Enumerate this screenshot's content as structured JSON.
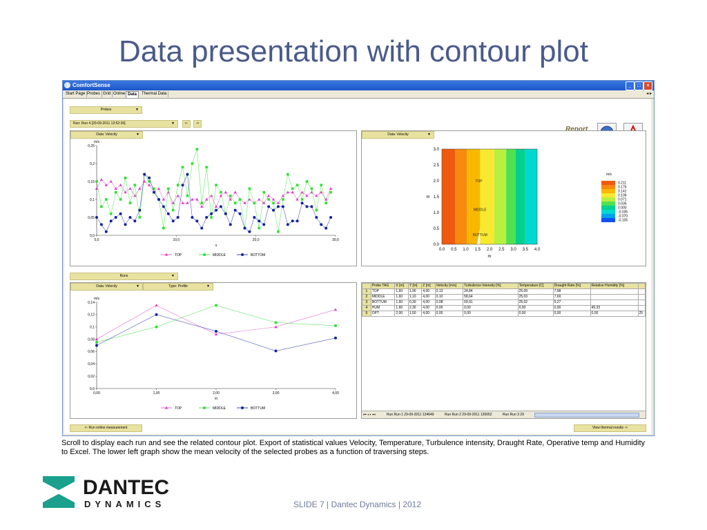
{
  "slide": {
    "title": "Data presentation with contour plot",
    "caption": "Scroll to display each run and see the related contour plot. Export of statistical values Velocity, Temperature, Turbulence intensity, Draught Rate, Operative temp and Humidity to Excel. The lower left graph show the mean velocity of the selected probes as a function of traversing steps.",
    "footer": "SLIDE 7  |  Dantec Dynamics  |  2012",
    "logo_line1": "DANTEC",
    "logo_line2": "DYNAMICS"
  },
  "window": {
    "title": "ComfortSense",
    "tabs": [
      "Start Page",
      "Probes",
      "Grid",
      "Online",
      "Data",
      "Thermal Data"
    ],
    "active_tab": "Data",
    "tab_nav": "◂ ▸"
  },
  "controls": {
    "probes_dd": "Probes",
    "run_dd": "Run: Run 4 [29-09-2011 13:52:26]",
    "prev_btn": "<-",
    "next_btn": "->",
    "report_label": "Report",
    "chart1_dd": "Data: Velocity",
    "contour_dd": "Data: Velocity",
    "runs_dd": "Runs",
    "chart2_dd": "Data: Velocity",
    "type_dd": "Type: Profile",
    "run_online_btn": "<- Run online measurement",
    "view_thermal_btn": "View thermal results ->"
  },
  "chart_data": [
    {
      "type": "line",
      "title": "",
      "xlabel": "s",
      "ylabel": "m/s",
      "xlim": [
        0,
        30
      ],
      "ylim": [
        0,
        0.25
      ],
      "xticks": [
        "0,0",
        "10,0",
        "20,0",
        "30,0"
      ],
      "yticks": [
        "0,0",
        "0,05",
        "0,1",
        "0,15",
        "0,2",
        "0,25"
      ],
      "legend": [
        "TOP",
        "MIDDLE",
        "BOTTOM"
      ],
      "colors": {
        "TOP": "#e040c0",
        "MIDDLE": "#30e030",
        "BOTTOM": "#1020a0"
      },
      "series": [
        {
          "name": "TOP",
          "x": [
            0,
            0.6,
            1.2,
            1.8,
            2.4,
            3,
            3.6,
            4.2,
            4.8,
            5.4,
            6,
            6.6,
            7.2,
            7.8,
            8.4,
            9,
            9.6,
            10.2,
            10.8,
            11.4,
            12,
            12.6,
            13.2,
            13.8,
            14.4,
            15,
            15.6,
            16.2,
            16.8,
            17.4,
            18,
            18.6,
            19.2,
            19.8,
            20.4,
            21,
            21.6,
            22.2,
            22.8,
            23.4,
            24,
            24.6,
            25.2,
            25.8,
            26.4,
            27,
            27.6,
            28.2,
            28.8,
            29.4
          ],
          "values": [
            0.13,
            0.155,
            0.14,
            0.15,
            0.13,
            0.14,
            0.12,
            0.13,
            0.11,
            0.13,
            0.15,
            0.14,
            0.12,
            0.13,
            0.1,
            0.12,
            0.09,
            0.11,
            0.09,
            0.09,
            0.1,
            0.1,
            0.08,
            0.1,
            0.11,
            0.08,
            0.11,
            0.12,
            0.1,
            0.12,
            0.1,
            0.09,
            0.1,
            0.09,
            0.1,
            0.09,
            0.11,
            0.1,
            0.09,
            0.11,
            0.12,
            0.12,
            0.1,
            0.12,
            0.11,
            0.12,
            0.11,
            0.12,
            0.1,
            0.13
          ]
        },
        {
          "name": "MIDDLE",
          "x": [
            0,
            0.6,
            1.2,
            1.8,
            2.4,
            3,
            3.6,
            4.2,
            4.8,
            5.4,
            6,
            6.6,
            7.2,
            7.8,
            8.4,
            9,
            9.6,
            10.2,
            10.8,
            11.4,
            12,
            12.6,
            13.2,
            13.8,
            14.4,
            15,
            15.6,
            16.2,
            16.8,
            17.4,
            18,
            18.6,
            19.2,
            19.8,
            20.4,
            21,
            21.6,
            22.2,
            22.8,
            23.4,
            24,
            24.6,
            25.2,
            25.8,
            26.4,
            27,
            27.6,
            28.2,
            28.8,
            29.4
          ],
          "values": [
            0.15,
            0.08,
            0.1,
            0.06,
            0.12,
            0.1,
            0.16,
            0.09,
            0.14,
            0.05,
            0.17,
            0.15,
            0.13,
            0.1,
            0.02,
            0.13,
            0.07,
            0.14,
            0.19,
            0.11,
            0.2,
            0.24,
            0.09,
            0.19,
            0.05,
            0.14,
            0.12,
            0.06,
            0.11,
            0.09,
            0.1,
            0.02,
            0.13,
            0.09,
            0.02,
            0.12,
            0.1,
            0.09,
            0.01,
            0.1,
            0.17,
            0.13,
            0.14,
            0.1,
            0.15,
            0.13,
            0.07,
            0.14,
            0.09,
            0.12
          ]
        },
        {
          "name": "BOTTOM",
          "x": [
            0,
            0.6,
            1.2,
            1.8,
            2.4,
            3,
            3.6,
            4.2,
            4.8,
            5.4,
            6,
            6.6,
            7.2,
            7.8,
            8.4,
            9,
            9.6,
            10.2,
            10.8,
            11.4,
            12,
            12.6,
            13.2,
            13.8,
            14.4,
            15,
            15.6,
            16.2,
            16.8,
            17.4,
            18,
            18.6,
            19.2,
            19.8,
            20.4,
            21,
            21.6,
            22.2,
            22.8,
            23.4,
            24,
            24.6,
            25.2,
            25.8,
            26.4,
            27,
            27.6,
            28.2,
            28.8,
            29.4
          ],
          "values": [
            0.05,
            0.03,
            0.01,
            0.04,
            0.05,
            0.06,
            0.03,
            0.05,
            0.04,
            0.07,
            0.17,
            0.16,
            0.12,
            0.1,
            0.08,
            0.06,
            0.04,
            0.05,
            0.14,
            0.17,
            0.05,
            0.04,
            0.02,
            0.05,
            0.06,
            0.07,
            0.08,
            0.06,
            0.03,
            0.07,
            0.06,
            0.02,
            0.01,
            0.05,
            0.04,
            0.03,
            0.08,
            0.07,
            0.08,
            0.08,
            0.03,
            0.04,
            0.04,
            0.09,
            0.08,
            0.08,
            0.05,
            0.03,
            0.02,
            0.05
          ]
        }
      ]
    },
    {
      "type": "line",
      "title": "",
      "xlabel": "m",
      "ylabel": "m/s",
      "xlim": [
        0,
        4
      ],
      "ylim": [
        0,
        0.14
      ],
      "xticks": [
        "0,00",
        "1,00",
        "2,00",
        "3,00",
        "4,00"
      ],
      "yticks": [
        "0,0",
        "0,02",
        "0,04",
        "0,06",
        "0,08",
        "0,1",
        "0,12",
        "0,14"
      ],
      "legend": [
        "TOP",
        "MIDDLE",
        "BOTTUM"
      ],
      "colors": {
        "TOP": "#e040c0",
        "MIDDLE": "#30e030",
        "BOTTUM": "#1020a0"
      },
      "series": [
        {
          "name": "TOP",
          "x": [
            0,
            1,
            2,
            3,
            4
          ],
          "values": [
            0.08,
            0.135,
            0.088,
            0.1,
            0.128
          ]
        },
        {
          "name": "MIDDLE",
          "x": [
            0,
            1,
            2,
            3,
            4
          ],
          "values": [
            0.075,
            0.1,
            0.135,
            0.107,
            0.102
          ]
        },
        {
          "name": "BOTTUM",
          "x": [
            0,
            1,
            2,
            3,
            4
          ],
          "values": [
            0.07,
            0.12,
            0.093,
            0.061,
            0.082
          ]
        }
      ]
    },
    {
      "type": "heatmap",
      "title": "",
      "xlabel": "m",
      "ylabel": "m",
      "xlim": [
        0,
        4
      ],
      "ylim": [
        0,
        3
      ],
      "xticks": [
        "0.0",
        "0.5",
        "1.0",
        "1.5",
        "2.0",
        "2.5",
        "3.0",
        "3.5",
        "4.0"
      ],
      "yticks": [
        "0.0",
        "0.5",
        "1.0",
        "1.5",
        "2.0",
        "2.5",
        "3.0"
      ],
      "legend_title": "m/s",
      "levels": [
        "0.211",
        "0.176",
        "0.141",
        "0.106",
        "0.071",
        "0.035",
        "0.000",
        "-0.035",
        "-0.070",
        "-0.105"
      ],
      "level_colors": [
        "#f05a10",
        "#f88a10",
        "#f8b800",
        "#f8e830",
        "#b8f040",
        "#50e050",
        "#00d090",
        "#00d8d0",
        "#00a0f0",
        "#1050f0"
      ],
      "annotations": [
        "TOP",
        "MIDDLE",
        "BOTTUM"
      ]
    }
  ],
  "table": {
    "headers": [
      "",
      "Probe TAG",
      "X [m]",
      "Y [m]",
      "Z [m]",
      "Velocity [m/s]",
      "Turbulence Intensity [%]",
      "Temperature [C]",
      "Draught Rate [%]",
      "Relative Humidity [%]",
      ""
    ],
    "rows": [
      [
        "1",
        "TOP",
        "1,60",
        "1,90",
        "4,00",
        "0,13",
        "24,84",
        "25,09",
        "7,98",
        "",
        ""
      ],
      [
        "2",
        "MIDDLE",
        "1,60",
        "1,10",
        "4,00",
        "0,10",
        "58,64",
        "25,03",
        "7,69",
        "",
        ""
      ],
      [
        "3",
        "BOTTUM",
        "1,60",
        "0,30",
        "4,00",
        "0,08",
        "59,91",
        "25,02",
        "5,27",
        "",
        ""
      ],
      [
        "4",
        "HUM",
        "1,60",
        "2,30",
        "4,00",
        "0,00",
        "0,00",
        "0,00",
        "0,00",
        "49,33",
        ""
      ],
      [
        "5",
        "OPT",
        "2,00",
        "1,50",
        "4,00",
        "0,00",
        "0,00",
        "0,00",
        "0,00",
        "0,00",
        "25"
      ]
    ],
    "sheet_nav": "⏮ ◂ ▸ ⏭",
    "sheet_tabs": [
      "Run Run 1 29-09-2011 134649",
      "Run Run 2 29-09-2011 135052",
      "Run Run 3 29"
    ]
  }
}
